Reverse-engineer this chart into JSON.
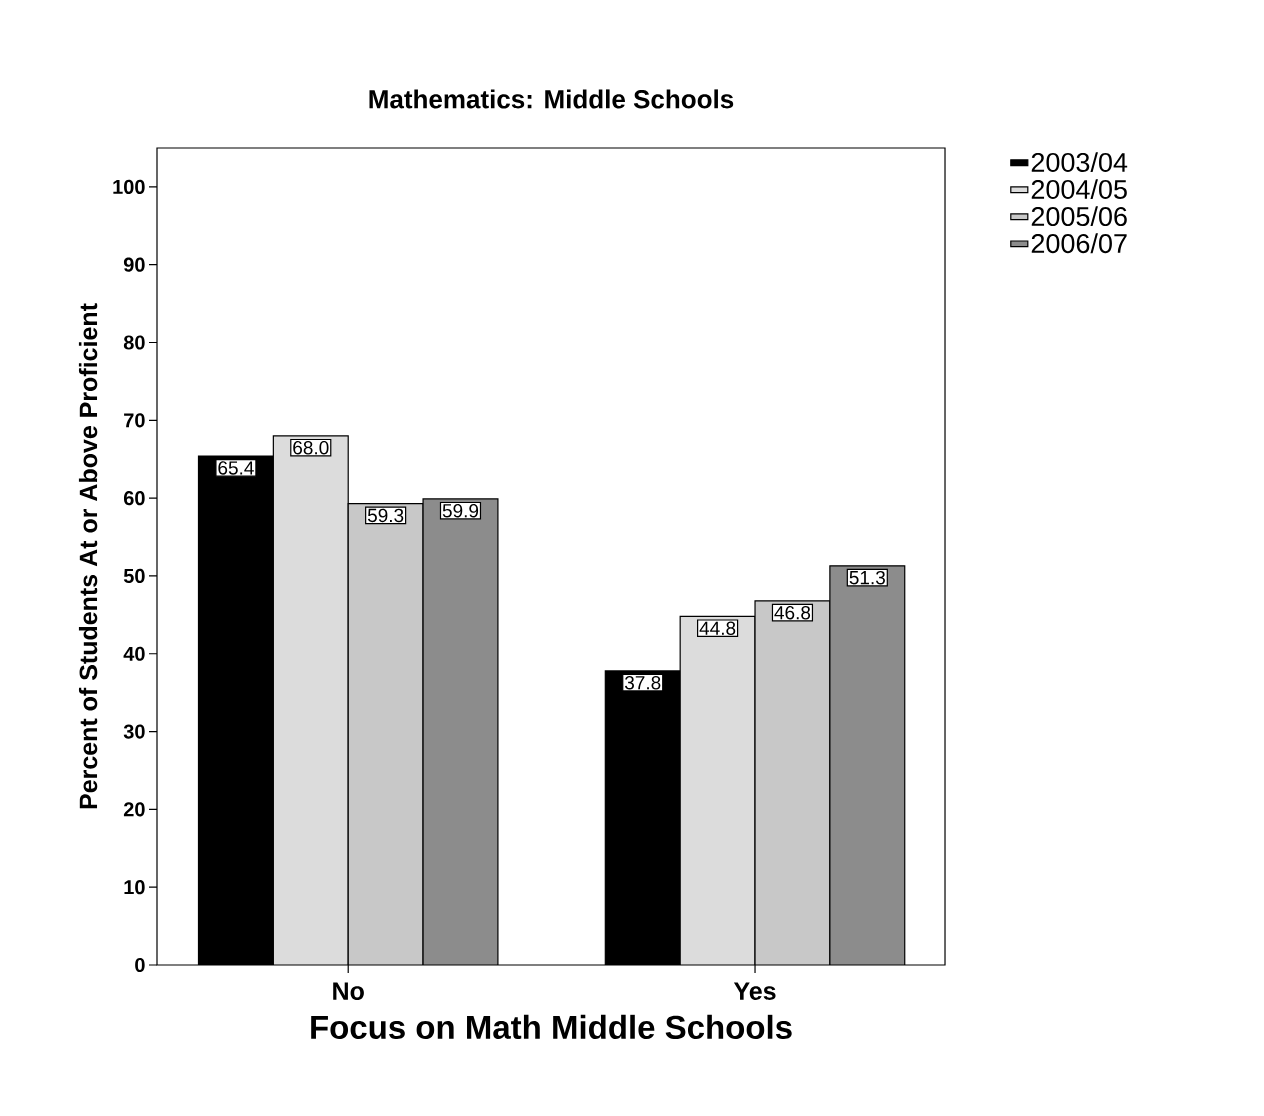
{
  "chart_data": {
    "type": "bar",
    "title": "Mathematics: Middle Schools",
    "xlabel": "Focus on Math Middle Schools",
    "ylabel": "Percent of Students At or Above Proficient",
    "categories": [
      "No",
      "Yes"
    ],
    "series": [
      {
        "name": "2003/04",
        "color": "#000000",
        "values": [
          65.4,
          37.8
        ],
        "value_labels": [
          "65.4",
          "37.8"
        ]
      },
      {
        "name": "2004/05",
        "color": "#dcdcdc",
        "values": [
          68.0,
          44.8
        ],
        "value_labels": [
          "68.0",
          "44.8"
        ]
      },
      {
        "name": "2005/06",
        "color": "#c8c8c8",
        "values": [
          59.3,
          46.8
        ],
        "value_labels": [
          "59.3",
          "46.8"
        ]
      },
      {
        "name": "2006/07",
        "color": "#8c8c8c",
        "values": [
          59.9,
          51.3
        ],
        "value_labels": [
          "59.9",
          "51.3"
        ]
      }
    ],
    "ylim": [
      0,
      105
    ],
    "yticks": [
      0,
      10,
      20,
      30,
      40,
      50,
      60,
      70,
      80,
      90,
      100
    ],
    "grid": false,
    "legend": "top right"
  }
}
